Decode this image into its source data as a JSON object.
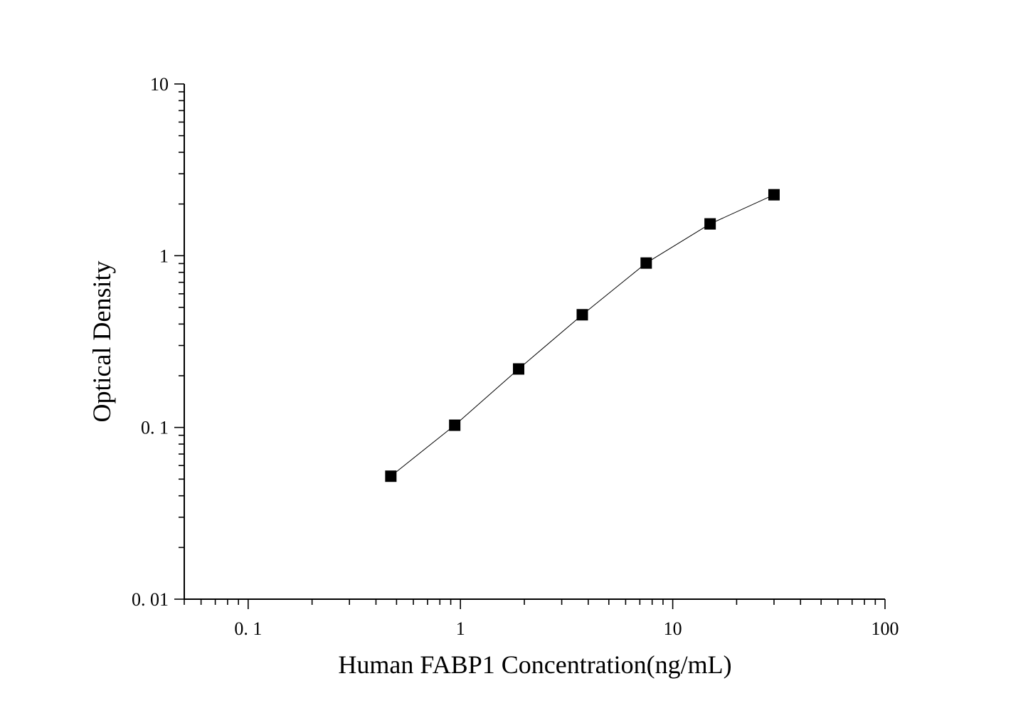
{
  "chart_data": {
    "type": "scatter",
    "title": "",
    "xlabel": "Human FABP1 Concentration(ng/mL)",
    "ylabel": "Optical Density",
    "xscale": "log",
    "yscale": "log",
    "xlim": [
      0.05,
      100
    ],
    "ylim": [
      0.01,
      10
    ],
    "x_ticks": [
      {
        "value": 0.1,
        "label": "0. 1"
      },
      {
        "value": 1,
        "label": "1"
      },
      {
        "value": 10,
        "label": "10"
      },
      {
        "value": 100,
        "label": "100"
      }
    ],
    "y_ticks": [
      {
        "value": 0.01,
        "label": "0. 01"
      },
      {
        "value": 0.1,
        "label": "0. 1"
      },
      {
        "value": 1,
        "label": "1"
      },
      {
        "value": 10,
        "label": "10"
      }
    ],
    "grid": false,
    "legend": "none",
    "marker": "square",
    "connected": true,
    "color": "#000000",
    "series": [
      {
        "x": [
          0.47,
          0.94,
          1.88,
          3.75,
          7.5,
          15,
          30
        ],
        "y": [
          0.052,
          0.103,
          0.219,
          0.453,
          0.906,
          1.532,
          2.264
        ]
      }
    ]
  }
}
